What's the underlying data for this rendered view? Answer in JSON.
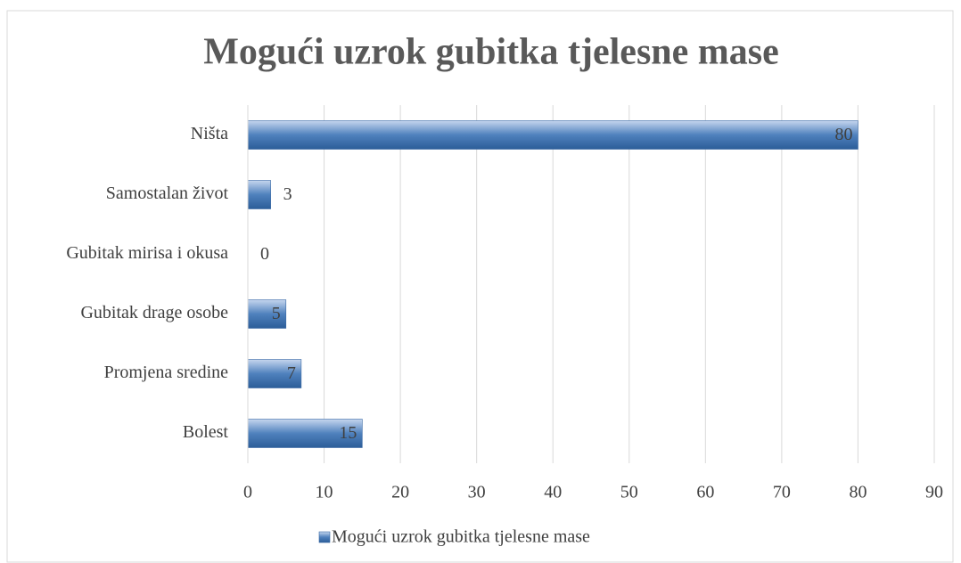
{
  "chart_data": {
    "type": "bar",
    "orientation": "horizontal",
    "title": "Mogući uzrok gubitka tjelesne mase",
    "categories": [
      "Ništa",
      "Samostalan život",
      "Gubitak mirisa i okusa",
      "Gubitak drage osobe",
      "Promjena sredine",
      "Bolest"
    ],
    "series": [
      {
        "name": "Mogući uzrok gubitka tjelesne mase",
        "color": "#4f81bd",
        "values": [
          80,
          3,
          0,
          5,
          7,
          15
        ]
      }
    ],
    "xlim": [
      0,
      90
    ],
    "xticks": [
      0,
      10,
      20,
      30,
      40,
      50,
      60,
      70,
      80,
      90
    ],
    "grid": true,
    "legend": "bottom"
  }
}
